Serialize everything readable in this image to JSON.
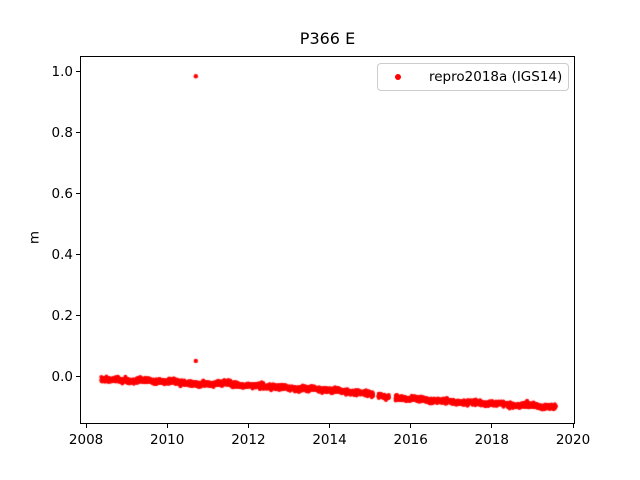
{
  "chart_data": {
    "type": "scatter",
    "title": "P366 E",
    "xlabel": "",
    "ylabel": "m",
    "xlim": [
      2007.85,
      2020.05
    ],
    "ylim": [
      -0.155,
      1.051
    ],
    "xtick_values": [
      2008,
      2010,
      2012,
      2014,
      2016,
      2018,
      2020
    ],
    "xtick_labels": [
      "2008",
      "2010",
      "2012",
      "2014",
      "2016",
      "2018",
      "2020"
    ],
    "ytick_values": [
      0.0,
      0.2,
      0.4,
      0.6,
      0.8,
      1.0
    ],
    "ytick_labels": [
      "0.0",
      "0.2",
      "0.4",
      "0.6",
      "0.8",
      "1.0"
    ],
    "grid": false,
    "legend_position": "upper right",
    "colors": {
      "background": "#ffffff",
      "axes": "#000000",
      "text": "#000000",
      "legend_border": "#cccccc",
      "series": "#ff0000"
    },
    "legend": {
      "entries": [
        {
          "label": "repro2018a (IGS14)",
          "marker": "dot",
          "color": "#ff0000"
        }
      ]
    },
    "series": [
      {
        "name": "repro2018a (IGS14)",
        "color": "#ff0000",
        "marker": "dot",
        "marker_radius_px": 2,
        "x_start": 2008.35,
        "x_end": 2019.55,
        "samples_per_year": 365,
        "noise_sigma_m": 0.0035,
        "seed": 7,
        "trend_points": [
          [
            2008.35,
            -0.005
          ],
          [
            2009.0,
            -0.009
          ],
          [
            2009.6,
            -0.011
          ],
          [
            2010.0,
            -0.013
          ],
          [
            2010.55,
            -0.017
          ],
          [
            2010.72,
            -0.026
          ],
          [
            2010.95,
            -0.02
          ],
          [
            2011.2,
            -0.017
          ],
          [
            2011.6,
            -0.022
          ],
          [
            2012.0,
            -0.026
          ],
          [
            2012.5,
            -0.029
          ],
          [
            2013.0,
            -0.033
          ],
          [
            2013.5,
            -0.036
          ],
          [
            2014.0,
            -0.041
          ],
          [
            2014.5,
            -0.047
          ],
          [
            2015.0,
            -0.054
          ],
          [
            2015.3,
            -0.061
          ],
          [
            2015.6,
            -0.065
          ],
          [
            2016.0,
            -0.069
          ],
          [
            2016.5,
            -0.074
          ],
          [
            2017.0,
            -0.079
          ],
          [
            2017.5,
            -0.082
          ],
          [
            2018.0,
            -0.085
          ],
          [
            2018.5,
            -0.089
          ],
          [
            2019.0,
            -0.092
          ],
          [
            2019.55,
            -0.097
          ]
        ],
        "gaps": [
          [
            2015.05,
            2015.18
          ],
          [
            2015.44,
            2015.6
          ],
          [
            2016.56,
            2016.62
          ]
        ],
        "outliers": [
          [
            2010.68,
            0.988
          ],
          [
            2010.68,
            0.055
          ]
        ]
      }
    ]
  }
}
